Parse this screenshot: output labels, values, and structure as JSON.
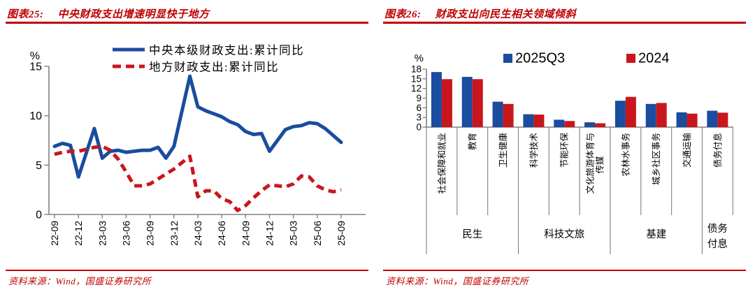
{
  "colors": {
    "accent_red": "#C00000",
    "data_red": "#C9161D",
    "data_blue": "#1A4C9F",
    "axis_gray": "#808080",
    "text_black": "#000000"
  },
  "panels": {
    "left": {
      "figure_label": "图表25:",
      "title": "中央财政支出增速明显快于地方",
      "source": "资料来源：Wind，国盛证券研究所"
    },
    "right": {
      "figure_label": "图表26:",
      "title": "财政支出向民生相关领域倾斜",
      "source": "资料来源：Wind，国盛证券研究所"
    }
  },
  "chart_data": [
    {
      "type": "line",
      "title": "中央财政支出增速明显快于地方",
      "ylabel": "%",
      "ylim": [
        0,
        15
      ],
      "yticks": [
        0,
        5,
        10,
        15
      ],
      "grid": false,
      "legend_position": "top",
      "xtick_labels": [
        "22-09",
        "22-12",
        "23-03",
        "23-06",
        "23-09",
        "23-12",
        "24-03",
        "24-06",
        "24-09",
        "24-12",
        "25-03",
        "25-06",
        "25-09"
      ],
      "x": [
        "22-09",
        "22-10",
        "22-11",
        "22-12",
        "23-02",
        "23-03",
        "23-04",
        "23-05",
        "23-06",
        "23-07",
        "23-08",
        "23-09",
        "23-10",
        "23-11",
        "23-12",
        "24-02",
        "24-03",
        "24-04",
        "24-05",
        "24-06",
        "24-07",
        "24-08",
        "24-09",
        "24-10",
        "24-11",
        "24-12",
        "25-02",
        "25-03",
        "25-04",
        "25-05",
        "25-06",
        "25-07",
        "25-08",
        "25-09"
      ],
      "series": [
        {
          "name": "中央本级财政支出:累计同比",
          "color": "#1A4C9F",
          "style": "solid",
          "values": [
            6.9,
            7.2,
            7.0,
            3.8,
            8.7,
            5.7,
            6.4,
            6.5,
            6.3,
            6.4,
            6.5,
            6.5,
            6.8,
            5.7,
            6.9,
            14.0,
            10.9,
            10.5,
            10.2,
            9.9,
            9.4,
            9.1,
            8.4,
            8.1,
            8.2,
            6.4,
            8.6,
            8.9,
            9.0,
            9.3,
            9.2,
            8.7,
            8.0,
            7.3
          ]
        },
        {
          "name": "地方财政支出:累计同比",
          "color": "#C9161D",
          "style": "dashed",
          "values": [
            6.1,
            6.3,
            6.4,
            6.4,
            6.8,
            6.9,
            6.5,
            5.6,
            4.3,
            2.9,
            2.9,
            3.1,
            3.6,
            4.1,
            4.6,
            5.9,
            1.8,
            2.4,
            2.4,
            1.6,
            1.3,
            0.4,
            0.9,
            1.7,
            2.4,
            3.0,
            2.8,
            3.1,
            3.9,
            3.8,
            2.9,
            2.5,
            2.3,
            2.5
          ]
        }
      ]
    },
    {
      "type": "bar",
      "title": "财政支出向民生相关领域倾斜",
      "ylabel": "%",
      "ylim": [
        0,
        18
      ],
      "yticks": [
        0,
        3,
        6,
        9,
        12,
        15,
        18
      ],
      "grid": false,
      "legend_position": "top",
      "categories": [
        "社会保障和就业",
        "教育",
        "卫生健康",
        "科学技术",
        "节能环保",
        "文化旅游体育与传媒",
        "农林水事务",
        "城乡社区事务",
        "交通运输",
        "债务付息"
      ],
      "groups": [
        {
          "label": "民生",
          "span": 3
        },
        {
          "label": "科技文旅",
          "span": 3
        },
        {
          "label": "基建",
          "span": 3
        },
        {
          "label": "债务付息",
          "span": 1
        }
      ],
      "series": [
        {
          "name": "2025Q3",
          "color": "#1A4C9F",
          "values": [
            17.1,
            15.6,
            7.9,
            4.0,
            2.3,
            1.5,
            8.2,
            7.2,
            4.6,
            5.1
          ]
        },
        {
          "name": "2024",
          "color": "#C9161D",
          "values": [
            14.9,
            14.9,
            7.2,
            3.9,
            1.9,
            1.2,
            9.4,
            7.5,
            4.2,
            4.5
          ]
        }
      ]
    }
  ]
}
